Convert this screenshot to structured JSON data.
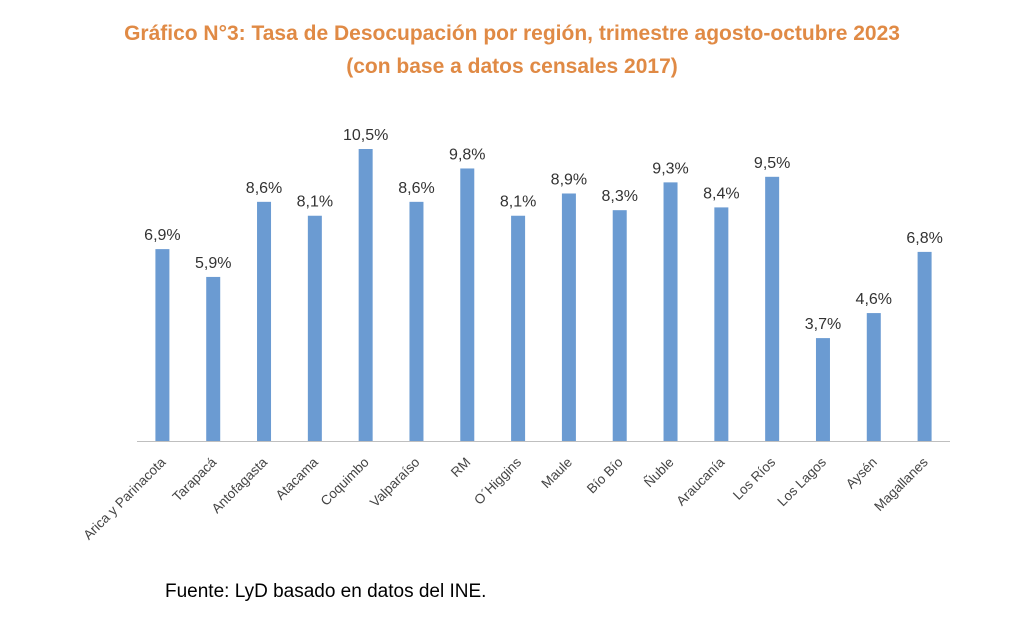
{
  "chart_data": {
    "type": "bar",
    "title": "Gráfico N°3: Tasa de Desocupación por región, trimestre agosto-octubre 2023",
    "subtitle": "(con base a datos censales 2017)",
    "categories": [
      "Arica y Parinacota",
      "Tarapacá",
      "Antofagasta",
      "Atacama",
      "Coquimbo",
      "Valparaíso",
      "RM",
      "O´Higgins",
      "Maule",
      "Bío Bío",
      "Ñuble",
      "Araucanía",
      "Los Ríos",
      "Los Lagos",
      "Aysén",
      "Magallanes"
    ],
    "values": [
      6.9,
      5.9,
      8.6,
      8.1,
      10.5,
      8.6,
      9.8,
      8.1,
      8.9,
      8.3,
      9.3,
      8.4,
      9.5,
      3.7,
      4.6,
      6.8
    ],
    "data_labels": [
      "6,9%",
      "5,9%",
      "8,6%",
      "8,1%",
      "10,5%",
      "8,6%",
      "9,8%",
      "8,1%",
      "8,9%",
      "8,3%",
      "9,3%",
      "8,4%",
      "9,5%",
      "3,7%",
      "4,6%",
      "6,8%"
    ],
    "ylim": [
      0,
      11
    ],
    "xlabel": "",
    "ylabel": "",
    "grid": false,
    "legend": "none",
    "bar_color": "#6b9bd2"
  },
  "source": "Fuente: LyD basado en datos del INE."
}
